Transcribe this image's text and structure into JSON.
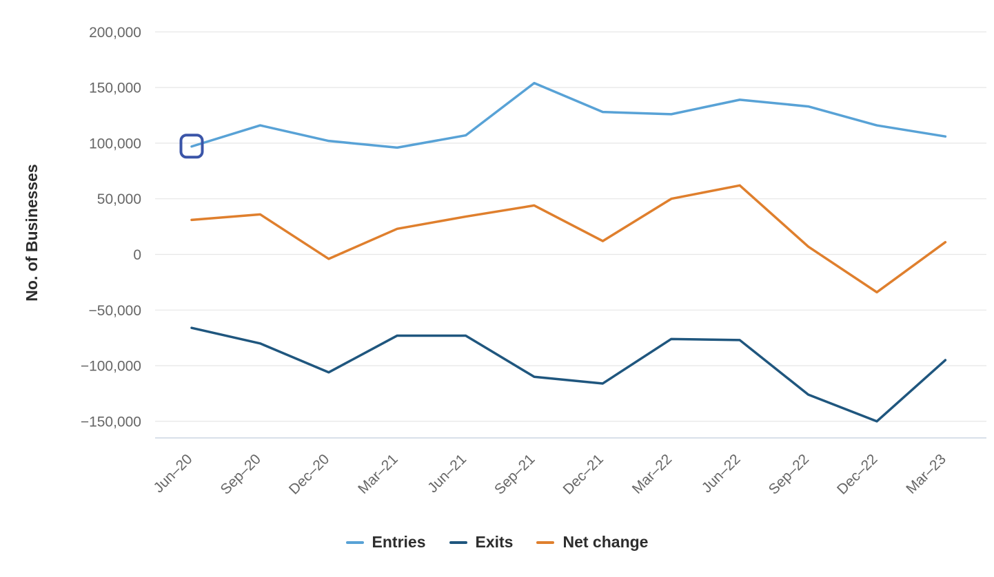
{
  "chart_data": {
    "type": "line",
    "title": "",
    "ylabel": "No. of Businesses",
    "xlabel": "",
    "categories": [
      "Jun–20",
      "Sep–20",
      "Dec–20",
      "Mar–21",
      "Jun–21",
      "Sep–21",
      "Dec–21",
      "Mar–22",
      "Jun–22",
      "Sep–22",
      "Dec–22",
      "Mar–23"
    ],
    "series": [
      {
        "name": "Entries",
        "color": "#58a2d6",
        "values": [
          97000,
          116000,
          102000,
          96000,
          107000,
          154000,
          128000,
          126000,
          139000,
          133000,
          116000,
          106000
        ]
      },
      {
        "name": "Exits",
        "color": "#1f567e",
        "values": [
          -66000,
          -80000,
          -106000,
          -73000,
          -73000,
          -110000,
          -116000,
          -76000,
          -77000,
          -126000,
          -150000,
          -95000
        ]
      },
      {
        "name": "Net change",
        "color": "#df7f2d",
        "values": [
          31000,
          36000,
          -4000,
          23000,
          34000,
          44000,
          12000,
          50000,
          62000,
          7000,
          -34000,
          11000
        ]
      }
    ],
    "yticks": [
      {
        "value": 200000,
        "label": "200,000"
      },
      {
        "value": 150000,
        "label": "150,000"
      },
      {
        "value": 100000,
        "label": "100,000"
      },
      {
        "value": 50000,
        "label": "50,000"
      },
      {
        "value": 0,
        "label": "0"
      },
      {
        "value": -50000,
        "label": "−50,000"
      },
      {
        "value": -100000,
        "label": "−100,000"
      },
      {
        "value": -150000,
        "label": "−150,000"
      }
    ],
    "ylim": [
      -165000,
      200000
    ],
    "grid": true,
    "legend_position": "bottom",
    "annotation": {
      "shape": "rounded-square",
      "series": "Entries",
      "category": "Jun–20",
      "color": "#3b55a8"
    }
  },
  "colors": {
    "background": "#ffffff",
    "gridline": "#e6e6e6",
    "axis_line": "#ccd6e2",
    "tick_label": "#666666",
    "axis_title": "#2c2c2c",
    "legend_label": "#2d2d2d"
  }
}
